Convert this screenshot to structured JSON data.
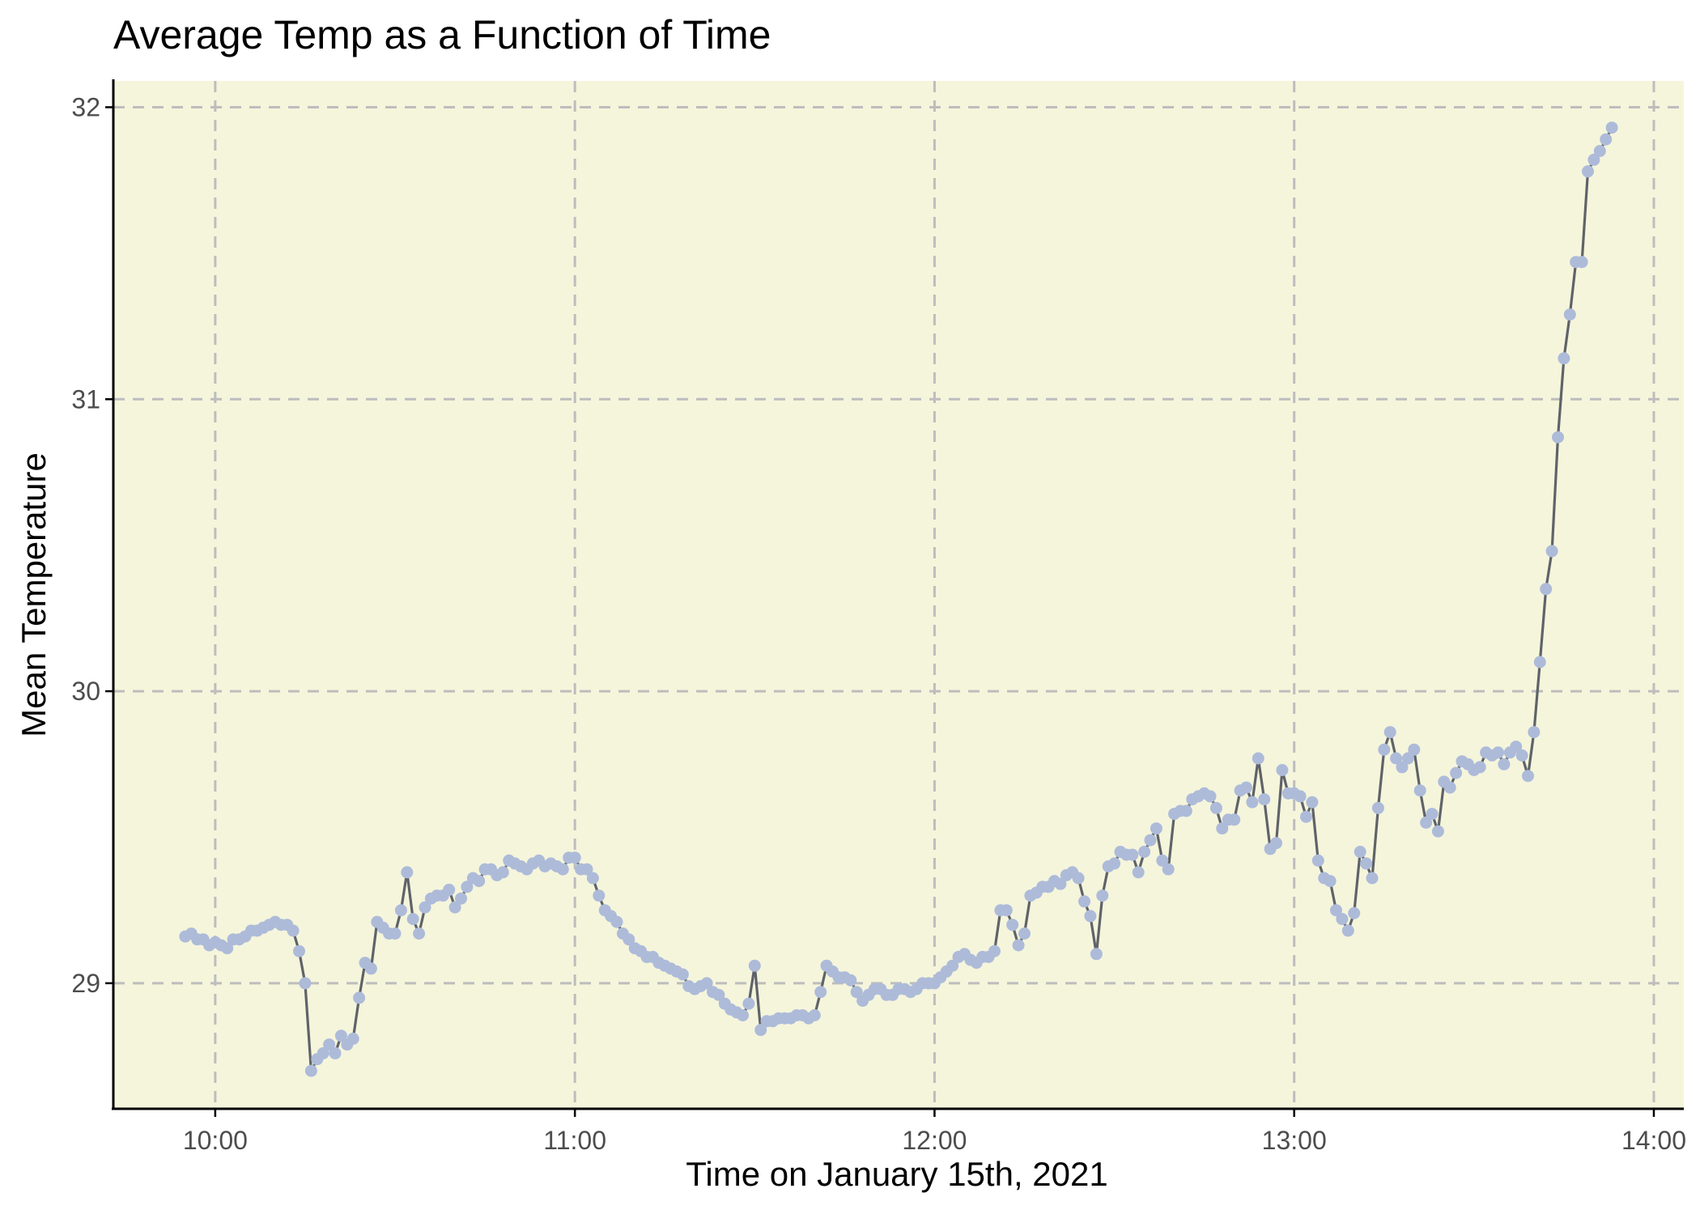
{
  "chart_data": {
    "type": "line",
    "title": "Average Temp as a Function of Time",
    "xlabel": "Time on January 15th, 2021",
    "ylabel": "Mean Temperature",
    "x_unit": "time of day (hours)",
    "xlim": [
      "09:43",
      "14:05"
    ],
    "ylim": [
      28.57,
      32.09
    ],
    "x_ticks": [
      {
        "value": "10:00",
        "label": "10:00"
      },
      {
        "value": "11:00",
        "label": "11:00"
      },
      {
        "value": "12:00",
        "label": "12:00"
      },
      {
        "value": "13:00",
        "label": "13:00"
      },
      {
        "value": "14:00",
        "label": "14:00"
      }
    ],
    "y_ticks": [
      {
        "value": 29,
        "label": "29"
      },
      {
        "value": 30,
        "label": "30"
      },
      {
        "value": 31,
        "label": "31"
      },
      {
        "value": 32,
        "label": "32"
      }
    ],
    "grid": true,
    "grid_style": "dashed",
    "legend": false,
    "colors": {
      "panel_background": "#f5f5dc",
      "line": "#5f6368",
      "points": "#adbbd9",
      "grid": "#bdbdbd"
    },
    "series": [
      {
        "x": [
          "09:55",
          "09:56",
          "09:57",
          "09:58",
          "09:59",
          "10:00",
          "10:01",
          "10:02",
          "10:03",
          "10:04",
          "10:05",
          "10:06",
          "10:07",
          "10:08",
          "10:09",
          "10:10",
          "10:11",
          "10:12",
          "10:13",
          "10:14",
          "10:15",
          "10:16",
          "10:17",
          "10:18",
          "10:19",
          "10:20",
          "10:21",
          "10:22",
          "10:23",
          "10:24",
          "10:25",
          "10:26",
          "10:27",
          "10:28",
          "10:29",
          "10:30",
          "10:31",
          "10:32",
          "10:33",
          "10:34",
          "10:35",
          "10:36",
          "10:37",
          "10:38",
          "10:39",
          "10:40",
          "10:41",
          "10:42",
          "10:43",
          "10:44",
          "10:45",
          "10:46",
          "10:47",
          "10:48",
          "10:49",
          "10:50",
          "10:51",
          "10:52",
          "10:53",
          "10:54",
          "10:55",
          "10:56",
          "10:57",
          "10:58",
          "10:59",
          "11:00",
          "11:01",
          "11:02",
          "11:03",
          "11:04",
          "11:05",
          "11:06",
          "11:07",
          "11:08",
          "11:09",
          "11:10",
          "11:11",
          "11:12",
          "11:13",
          "11:14",
          "11:15",
          "11:16",
          "11:17",
          "11:18",
          "11:19",
          "11:20",
          "11:21",
          "11:22",
          "11:23",
          "11:24",
          "11:25",
          "11:26",
          "11:27",
          "11:28",
          "11:29",
          "11:30",
          "11:31",
          "11:32",
          "11:33",
          "11:34",
          "11:35",
          "11:36",
          "11:37",
          "11:38",
          "11:39",
          "11:40",
          "11:41",
          "11:42",
          "11:43",
          "11:44",
          "11:45",
          "11:46",
          "11:47",
          "11:48",
          "11:49",
          "11:50",
          "11:51",
          "11:52",
          "11:53",
          "11:54",
          "11:55",
          "11:56",
          "11:57",
          "11:58",
          "11:59",
          "12:00",
          "12:01",
          "12:02",
          "12:03",
          "12:04",
          "12:05",
          "12:06",
          "12:07",
          "12:08",
          "12:09",
          "12:10",
          "12:11",
          "12:12",
          "12:13",
          "12:14",
          "12:15",
          "12:16",
          "12:17",
          "12:18",
          "12:19",
          "12:20",
          "12:21",
          "12:22",
          "12:23",
          "12:24",
          "12:25",
          "12:26",
          "12:27",
          "12:28",
          "12:29",
          "12:30",
          "12:31",
          "12:32",
          "12:33",
          "12:34",
          "12:35",
          "12:36",
          "12:37",
          "12:38",
          "12:39",
          "12:40",
          "12:41",
          "12:42",
          "12:43",
          "12:44",
          "12:45",
          "12:46",
          "12:47",
          "12:48",
          "12:49",
          "12:50",
          "12:51",
          "12:52",
          "12:53",
          "12:54",
          "12:55",
          "12:56",
          "12:57",
          "12:58",
          "12:59",
          "13:00",
          "13:01",
          "13:02",
          "13:03",
          "13:04",
          "13:05",
          "13:06",
          "13:07",
          "13:08",
          "13:09",
          "13:10",
          "13:11",
          "13:12",
          "13:13",
          "13:14",
          "13:15",
          "13:16",
          "13:17",
          "13:18",
          "13:19",
          "13:20",
          "13:21",
          "13:22",
          "13:23",
          "13:24",
          "13:25",
          "13:26",
          "13:27",
          "13:28",
          "13:29",
          "13:30",
          "13:31",
          "13:32",
          "13:33",
          "13:34",
          "13:35",
          "13:36",
          "13:37",
          "13:38",
          "13:39",
          "13:40",
          "13:41",
          "13:42",
          "13:43",
          "13:44",
          "13:45",
          "13:46",
          "13:47",
          "13:48",
          "13:49",
          "13:50",
          "13:51",
          "13:52",
          "13:53"
        ],
        "values": [
          29.16,
          29.17,
          29.15,
          29.15,
          29.13,
          29.14,
          29.13,
          29.12,
          29.15,
          29.15,
          29.16,
          29.18,
          29.18,
          29.19,
          29.2,
          29.21,
          29.2,
          29.2,
          29.18,
          29.11,
          29.0,
          28.7,
          28.74,
          28.76,
          28.79,
          28.76,
          28.82,
          28.79,
          28.81,
          28.95,
          29.07,
          29.05,
          29.21,
          29.19,
          29.17,
          29.17,
          29.25,
          29.38,
          29.22,
          29.17,
          29.26,
          29.29,
          29.3,
          29.3,
          29.32,
          29.26,
          29.29,
          29.33,
          29.36,
          29.35,
          29.39,
          29.39,
          29.37,
          29.38,
          29.42,
          29.41,
          29.4,
          29.39,
          29.41,
          29.42,
          29.4,
          29.41,
          29.4,
          29.39,
          29.43,
          29.43,
          29.39,
          29.39,
          29.36,
          29.3,
          29.25,
          29.23,
          29.21,
          29.17,
          29.15,
          29.12,
          29.11,
          29.09,
          29.09,
          29.07,
          29.06,
          29.05,
          29.04,
          29.03,
          28.99,
          28.98,
          28.99,
          29.0,
          28.97,
          28.96,
          28.93,
          28.91,
          28.9,
          28.89,
          28.93,
          29.06,
          28.84,
          28.87,
          28.87,
          28.88,
          28.88,
          28.88,
          28.89,
          28.89,
          28.88,
          28.89,
          28.97,
          29.06,
          29.04,
          29.02,
          29.02,
          29.01,
          28.97,
          28.94,
          28.96,
          28.98,
          28.98,
          28.96,
          28.96,
          28.98,
          28.98,
          28.97,
          28.98,
          29.0,
          29.0,
          29.0,
          29.02,
          29.04,
          29.06,
          29.09,
          29.1,
          29.08,
          29.07,
          29.09,
          29.09,
          29.11,
          29.25,
          29.25,
          29.2,
          29.13,
          29.17,
          29.3,
          29.31,
          29.33,
          29.33,
          29.35,
          29.34,
          29.37,
          29.38,
          29.36,
          29.28,
          29.23,
          29.1,
          29.3,
          29.4,
          29.41,
          29.45,
          29.44,
          29.44,
          29.38,
          29.45,
          29.49,
          29.53,
          29.42,
          29.39,
          29.58,
          29.59,
          29.59,
          29.63,
          29.64,
          29.65,
          29.64,
          29.6,
          29.53,
          29.56,
          29.56,
          29.66,
          29.67,
          29.62,
          29.77,
          29.63,
          29.46,
          29.48,
          29.73,
          29.65,
          29.65,
          29.64,
          29.57,
          29.62,
          29.42,
          29.36,
          29.35,
          29.25,
          29.22,
          29.18,
          29.24,
          29.45,
          29.41,
          29.36,
          29.6,
          29.8,
          29.86,
          29.77,
          29.74,
          29.77,
          29.8,
          29.66,
          29.55,
          29.58,
          29.52,
          29.69,
          29.67,
          29.72,
          29.76,
          29.75,
          29.73,
          29.74,
          29.79,
          29.78,
          29.79,
          29.75,
          29.79,
          29.81,
          29.78,
          29.71,
          29.86,
          30.1,
          30.35,
          30.48,
          30.87,
          31.14,
          31.29,
          31.47,
          31.47,
          31.78,
          31.82,
          31.85,
          31.89,
          31.93
        ]
      }
    ]
  }
}
